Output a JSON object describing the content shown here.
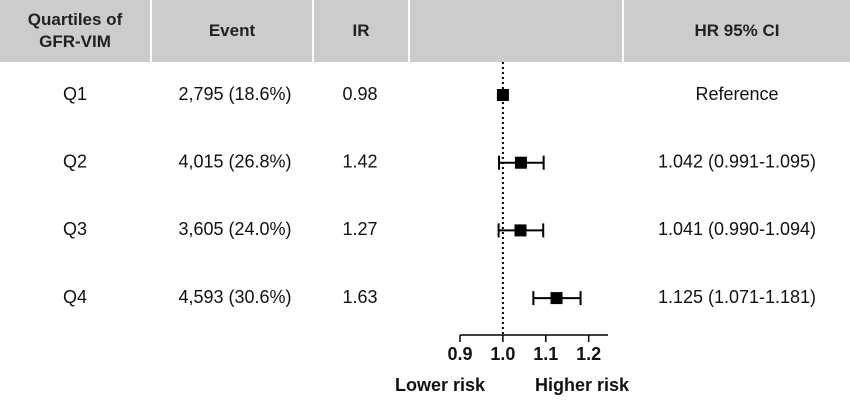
{
  "chart_data": {
    "type": "forest",
    "columns": [
      "Quartiles of GFR-VIM",
      "Event",
      "IR",
      "HR 95% CI"
    ],
    "categories": [
      "Q1",
      "Q2",
      "Q3",
      "Q4"
    ],
    "events": [
      "2,795 (18.6%)",
      "4,015 (26.8%)",
      "3,605 (24.0%)",
      "4,593 (30.6%)"
    ],
    "ir": [
      0.98,
      1.42,
      1.27,
      1.63
    ],
    "values": [
      1,
      1.042,
      1.041,
      1.125
    ],
    "lower": [
      null,
      0.991,
      0.99,
      1.071
    ],
    "upper": [
      null,
      1.095,
      1.094,
      1.181
    ],
    "value_labels": [
      "Reference",
      "1.042 (0.991-1.095)",
      "1.041 (0.990-1.094)",
      "1.125 (1.071-1.181)"
    ],
    "reference": 1,
    "xlim": [
      0.9,
      1.245
    ],
    "xticks": [
      0.9,
      {
        "value": 1,
        "label": "1.0"
      },
      1.1,
      1.2
    ],
    "x_annotations": [
      "Lower risk",
      "Higher risk"
    ],
    "color": "#000000",
    "header_color": "#cccccc"
  }
}
